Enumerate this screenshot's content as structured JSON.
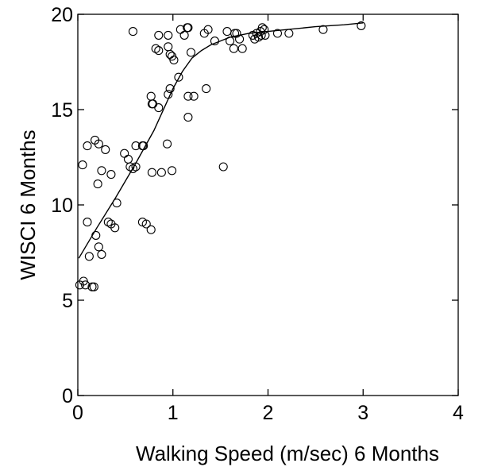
{
  "chart_data": {
    "type": "scatter",
    "title": "",
    "xlabel": "Walking Speed (m/sec) 6 Months",
    "ylabel": "WISCI 6 Months",
    "xlim": [
      0,
      4
    ],
    "ylim": [
      0,
      20
    ],
    "xticks": [
      0,
      1,
      2,
      3,
      4
    ],
    "yticks": [
      0,
      5,
      10,
      15,
      20
    ],
    "xtick_labels": [
      "0",
      "1",
      "2",
      "3",
      "4"
    ],
    "ytick_labels": [
      "0",
      "5",
      "10",
      "15",
      "20"
    ],
    "grid": false,
    "legend": "none",
    "points": [
      {
        "x": 0.02,
        "y": 5.8
      },
      {
        "x": 0.06,
        "y": 6.0
      },
      {
        "x": 0.08,
        "y": 5.8
      },
      {
        "x": 0.15,
        "y": 5.7
      },
      {
        "x": 0.17,
        "y": 5.7
      },
      {
        "x": 0.12,
        "y": 7.3
      },
      {
        "x": 0.19,
        "y": 8.4
      },
      {
        "x": 0.22,
        "y": 7.8
      },
      {
        "x": 0.25,
        "y": 7.4
      },
      {
        "x": 0.1,
        "y": 9.1
      },
      {
        "x": 0.32,
        "y": 9.1
      },
      {
        "x": 0.35,
        "y": 9.0
      },
      {
        "x": 0.39,
        "y": 8.8
      },
      {
        "x": 0.41,
        "y": 10.1
      },
      {
        "x": 0.21,
        "y": 11.1
      },
      {
        "x": 0.25,
        "y": 11.8
      },
      {
        "x": 0.35,
        "y": 11.6
      },
      {
        "x": 0.05,
        "y": 12.1
      },
      {
        "x": 0.1,
        "y": 13.1
      },
      {
        "x": 0.18,
        "y": 13.4
      },
      {
        "x": 0.22,
        "y": 13.2
      },
      {
        "x": 0.29,
        "y": 12.9
      },
      {
        "x": 0.49,
        "y": 12.7
      },
      {
        "x": 0.53,
        "y": 12.4
      },
      {
        "x": 0.55,
        "y": 12.0
      },
      {
        "x": 0.58,
        "y": 11.9
      },
      {
        "x": 0.61,
        "y": 12.0
      },
      {
        "x": 0.61,
        "y": 13.1
      },
      {
        "x": 0.68,
        "y": 13.1
      },
      {
        "x": 0.69,
        "y": 13.1
      },
      {
        "x": 0.68,
        "y": 9.1
      },
      {
        "x": 0.72,
        "y": 9.0
      },
      {
        "x": 0.77,
        "y": 8.7
      },
      {
        "x": 0.78,
        "y": 11.7
      },
      {
        "x": 0.88,
        "y": 11.7
      },
      {
        "x": 0.94,
        "y": 13.2
      },
      {
        "x": 0.99,
        "y": 11.8
      },
      {
        "x": 0.77,
        "y": 15.7
      },
      {
        "x": 0.78,
        "y": 15.3
      },
      {
        "x": 0.79,
        "y": 15.3
      },
      {
        "x": 0.85,
        "y": 15.1
      },
      {
        "x": 0.95,
        "y": 15.8
      },
      {
        "x": 0.97,
        "y": 16.1
      },
      {
        "x": 1.06,
        "y": 16.7
      },
      {
        "x": 1.16,
        "y": 15.7
      },
      {
        "x": 1.16,
        "y": 14.6
      },
      {
        "x": 1.22,
        "y": 15.7
      },
      {
        "x": 1.35,
        "y": 16.1
      },
      {
        "x": 1.53,
        "y": 12.0
      },
      {
        "x": 0.58,
        "y": 19.1
      },
      {
        "x": 0.82,
        "y": 18.2
      },
      {
        "x": 0.85,
        "y": 18.1
      },
      {
        "x": 0.85,
        "y": 18.9
      },
      {
        "x": 0.95,
        "y": 18.9
      },
      {
        "x": 0.95,
        "y": 18.3
      },
      {
        "x": 0.97,
        "y": 17.9
      },
      {
        "x": 0.99,
        "y": 17.8
      },
      {
        "x": 1.01,
        "y": 17.6
      },
      {
        "x": 1.08,
        "y": 19.2
      },
      {
        "x": 1.12,
        "y": 18.9
      },
      {
        "x": 1.15,
        "y": 19.3
      },
      {
        "x": 1.16,
        "y": 19.3
      },
      {
        "x": 1.19,
        "y": 18.0
      },
      {
        "x": 1.33,
        "y": 19.0
      },
      {
        "x": 1.37,
        "y": 19.2
      },
      {
        "x": 1.44,
        "y": 18.6
      },
      {
        "x": 1.57,
        "y": 19.1
      },
      {
        "x": 1.6,
        "y": 18.6
      },
      {
        "x": 1.64,
        "y": 18.2
      },
      {
        "x": 1.65,
        "y": 19.0
      },
      {
        "x": 1.67,
        "y": 19.0
      },
      {
        "x": 1.7,
        "y": 18.7
      },
      {
        "x": 1.73,
        "y": 18.2
      },
      {
        "x": 1.84,
        "y": 18.9
      },
      {
        "x": 1.86,
        "y": 18.7
      },
      {
        "x": 1.88,
        "y": 19.0
      },
      {
        "x": 1.9,
        "y": 18.8
      },
      {
        "x": 1.92,
        "y": 19.1
      },
      {
        "x": 1.93,
        "y": 18.9
      },
      {
        "x": 1.94,
        "y": 19.3
      },
      {
        "x": 1.96,
        "y": 19.2
      },
      {
        "x": 1.97,
        "y": 18.9
      },
      {
        "x": 2.1,
        "y": 19.0
      },
      {
        "x": 2.22,
        "y": 19.0
      },
      {
        "x": 2.58,
        "y": 19.2
      },
      {
        "x": 2.98,
        "y": 19.4
      }
    ],
    "fit_line": {
      "x": [
        0.01,
        0.2,
        0.4,
        0.6,
        0.8,
        1.0,
        1.1,
        1.2,
        1.3,
        1.4,
        1.5,
        1.6,
        1.8,
        2.0,
        2.2,
        2.5,
        2.8,
        3.0
      ],
      "y": [
        7.2,
        8.8,
        10.4,
        12.1,
        13.9,
        16.1,
        17.0,
        17.7,
        18.1,
        18.4,
        18.6,
        18.8,
        19.0,
        19.1,
        19.2,
        19.35,
        19.45,
        19.55
      ]
    }
  }
}
